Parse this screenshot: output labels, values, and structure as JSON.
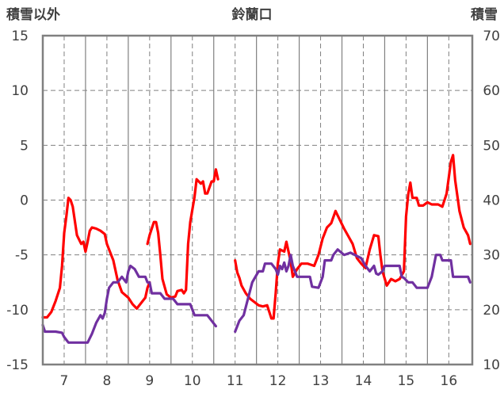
{
  "chart_data": {
    "type": "line",
    "title": "鈴蘭口",
    "ylabel_left": "積雪以外",
    "ylabel_right": "積雪",
    "y_left": {
      "range": [
        -15,
        15
      ],
      "ticks": [
        "15",
        "10",
        "5",
        "0",
        "-5",
        "-10",
        "-15"
      ]
    },
    "y_right": {
      "range": [
        10,
        70
      ],
      "ticks": [
        "70",
        "60",
        "50",
        "40",
        "30",
        "20",
        "10"
      ]
    },
    "x": {
      "range": [
        6.5,
        16.55
      ],
      "ticks": [
        "7",
        "8",
        "9",
        "10",
        "11",
        "12",
        "13",
        "14",
        "15",
        "16"
      ]
    },
    "grid": {
      "horizontal": true,
      "vertical": true,
      "style": "dashed"
    },
    "colors": {
      "red_series": "#ff0000",
      "purple_series": "#7030a0",
      "grid": "#808080",
      "frame": "#808080"
    },
    "series": [
      {
        "axis": "left",
        "color": "#ff0000",
        "segments": [
          [
            [
              6.5,
              -10.7
            ],
            [
              6.6,
              -10.7
            ],
            [
              6.7,
              -10.2
            ],
            [
              6.8,
              -9.2
            ],
            [
              6.9,
              -8
            ],
            [
              6.95,
              -6
            ],
            [
              7.0,
              -3
            ],
            [
              7.05,
              -1.5
            ],
            [
              7.1,
              0.2
            ],
            [
              7.15,
              0
            ],
            [
              7.2,
              -0.6
            ],
            [
              7.3,
              -3.2
            ],
            [
              7.4,
              -4
            ],
            [
              7.45,
              -3.8
            ],
            [
              7.5,
              -4.7
            ],
            [
              7.55,
              -3.8
            ],
            [
              7.6,
              -2.8
            ],
            [
              7.65,
              -2.5
            ],
            [
              7.75,
              -2.6
            ],
            [
              7.85,
              -2.8
            ],
            [
              7.95,
              -3.1
            ],
            [
              8.0,
              -4
            ],
            [
              8.1,
              -5
            ],
            [
              8.15,
              -5.5
            ],
            [
              8.25,
              -7.3
            ],
            [
              8.35,
              -8.4
            ],
            [
              8.5,
              -8.9
            ],
            [
              8.6,
              -9.5
            ],
            [
              8.7,
              -9.9
            ],
            [
              8.8,
              -9.4
            ],
            [
              8.9,
              -8.9
            ],
            [
              8.95,
              -8
            ],
            [
              9.0,
              -7.5
            ]
          ],
          [
            [
              8.95,
              -4
            ],
            [
              9.0,
              -3.2
            ],
            [
              9.1,
              -2
            ],
            [
              9.15,
              -2
            ],
            [
              9.2,
              -3
            ],
            [
              9.25,
              -5
            ],
            [
              9.3,
              -7.2
            ],
            [
              9.4,
              -8.6
            ],
            [
              9.5,
              -8.9
            ],
            [
              9.6,
              -8.8
            ],
            [
              9.65,
              -8.3
            ],
            [
              9.75,
              -8.2
            ],
            [
              9.8,
              -8.5
            ],
            [
              9.85,
              -8.2
            ],
            [
              9.9,
              -4
            ],
            [
              9.95,
              -2
            ],
            [
              10.05,
              0.3
            ],
            [
              10.1,
              1.9
            ],
            [
              10.2,
              1.5
            ],
            [
              10.25,
              1.7
            ],
            [
              10.3,
              0.6
            ],
            [
              10.35,
              0.6
            ],
            [
              10.45,
              1.7
            ],
            [
              10.5,
              1.7
            ],
            [
              10.55,
              2.8
            ],
            [
              10.6,
              1.9
            ]
          ],
          [
            [
              11.0,
              -5.5
            ],
            [
              11.05,
              -6.6
            ],
            [
              11.1,
              -7.1
            ],
            [
              11.15,
              -7.8
            ],
            [
              11.25,
              -8.5
            ],
            [
              11.35,
              -9
            ],
            [
              11.45,
              -9.3
            ],
            [
              11.55,
              -9.6
            ],
            [
              11.65,
              -9.7
            ],
            [
              11.75,
              -9.6
            ],
            [
              11.85,
              -10.8
            ],
            [
              11.9,
              -10.8
            ],
            [
              11.95,
              -8.5
            ],
            [
              12.0,
              -5.8
            ],
            [
              12.05,
              -4.5
            ],
            [
              12.15,
              -4.7
            ],
            [
              12.2,
              -3.8
            ],
            [
              12.3,
              -5.6
            ],
            [
              12.35,
              -7
            ],
            [
              12.45,
              -6.3
            ],
            [
              12.55,
              -5.8
            ],
            [
              12.7,
              -5.8
            ],
            [
              12.85,
              -6
            ],
            [
              12.95,
              -5
            ],
            [
              13.05,
              -3.5
            ],
            [
              13.15,
              -2.5
            ],
            [
              13.25,
              -2.1
            ],
            [
              13.35,
              -1
            ],
            [
              13.45,
              -1.8
            ],
            [
              13.55,
              -2.6
            ],
            [
              13.65,
              -3.3
            ],
            [
              13.75,
              -4
            ],
            [
              13.85,
              -5.3
            ],
            [
              13.95,
              -5.8
            ],
            [
              14.05,
              -6.2
            ],
            [
              14.15,
              -4.5
            ],
            [
              14.25,
              -3.2
            ],
            [
              14.35,
              -3.3
            ],
            [
              14.4,
              -5
            ],
            [
              14.45,
              -6.5
            ],
            [
              14.55,
              -7.8
            ],
            [
              14.65,
              -7.2
            ],
            [
              14.75,
              -7.4
            ],
            [
              14.85,
              -7.2
            ],
            [
              14.95,
              -6.5
            ],
            [
              15.0,
              -1.5
            ],
            [
              15.05,
              0.5
            ],
            [
              15.1,
              1.6
            ],
            [
              15.15,
              0.2
            ],
            [
              15.25,
              0.2
            ],
            [
              15.3,
              -0.5
            ],
            [
              15.4,
              -0.5
            ],
            [
              15.5,
              -0.2
            ],
            [
              15.6,
              -0.4
            ],
            [
              15.75,
              -0.4
            ],
            [
              15.85,
              -0.6
            ],
            [
              15.95,
              0.6
            ],
            [
              16.05,
              3.5
            ],
            [
              16.1,
              4.1
            ],
            [
              16.15,
              1.8
            ],
            [
              16.25,
              -1
            ],
            [
              16.35,
              -2.5
            ],
            [
              16.45,
              -3.2
            ],
            [
              16.5,
              -4
            ]
          ]
        ]
      },
      {
        "axis": "left",
        "color": "#7030a0",
        "segments": [
          [
            [
              6.5,
              -11.4
            ],
            [
              6.55,
              -12
            ],
            [
              6.8,
              -12
            ],
            [
              6.95,
              -12.1
            ],
            [
              7.0,
              -12.5
            ],
            [
              7.1,
              -13
            ],
            [
              7.55,
              -13
            ],
            [
              7.65,
              -12.2
            ],
            [
              7.75,
              -11.2
            ],
            [
              7.85,
              -10.5
            ],
            [
              7.9,
              -10.8
            ],
            [
              7.95,
              -10.3
            ],
            [
              8.0,
              -9
            ],
            [
              8.05,
              -8
            ],
            [
              8.15,
              -7.5
            ],
            [
              8.25,
              -7.5
            ],
            [
              8.35,
              -7
            ],
            [
              8.45,
              -7.5
            ],
            [
              8.5,
              -6.5
            ],
            [
              8.55,
              -6
            ],
            [
              8.65,
              -6.3
            ],
            [
              8.75,
              -7
            ],
            [
              8.9,
              -7
            ],
            [
              8.95,
              -7.5
            ],
            [
              9.0,
              -7.5
            ],
            [
              9.05,
              -8.5
            ],
            [
              9.25,
              -8.5
            ],
            [
              9.35,
              -9
            ],
            [
              9.55,
              -9
            ],
            [
              9.65,
              -9.5
            ],
            [
              9.95,
              -9.5
            ],
            [
              10.05,
              -10.5
            ],
            [
              10.35,
              -10.5
            ],
            [
              10.45,
              -11
            ],
            [
              10.55,
              -11.5
            ]
          ],
          [
            [
              11.0,
              -12
            ],
            [
              11.1,
              -11
            ],
            [
              11.2,
              -10.5
            ],
            [
              11.3,
              -9
            ],
            [
              11.4,
              -7.5
            ],
            [
              11.55,
              -6.5
            ],
            [
              11.65,
              -6.5
            ],
            [
              11.7,
              -5.8
            ],
            [
              11.85,
              -5.8
            ],
            [
              11.95,
              -6.3
            ],
            [
              12.0,
              -6.8
            ],
            [
              12.05,
              -6
            ],
            [
              12.1,
              -6.3
            ],
            [
              12.15,
              -5.7
            ],
            [
              12.2,
              -6.5
            ],
            [
              12.25,
              -6
            ],
            [
              12.3,
              -5
            ],
            [
              12.35,
              -6
            ],
            [
              12.45,
              -7
            ],
            [
              12.75,
              -7
            ],
            [
              12.8,
              -7.9
            ],
            [
              12.95,
              -8
            ],
            [
              13.05,
              -7
            ],
            [
              13.1,
              -5.5
            ],
            [
              13.25,
              -5.5
            ],
            [
              13.3,
              -5
            ],
            [
              13.4,
              -4.5
            ],
            [
              13.55,
              -5
            ],
            [
              13.7,
              -4.8
            ],
            [
              13.8,
              -5
            ],
            [
              13.95,
              -5.3
            ],
            [
              14.05,
              -6
            ],
            [
              14.15,
              -6.5
            ],
            [
              14.25,
              -6
            ],
            [
              14.3,
              -6.7
            ],
            [
              14.35,
              -6.8
            ],
            [
              14.45,
              -6.5
            ],
            [
              14.5,
              -6
            ],
            [
              14.85,
              -6
            ],
            [
              14.9,
              -7
            ],
            [
              14.95,
              -7.1
            ],
            [
              15.05,
              -7.5
            ],
            [
              15.15,
              -7.5
            ],
            [
              15.25,
              -8
            ],
            [
              15.5,
              -8
            ],
            [
              15.6,
              -7
            ],
            [
              15.7,
              -5
            ],
            [
              15.8,
              -5
            ],
            [
              15.85,
              -5.5
            ],
            [
              16.05,
              -5.5
            ],
            [
              16.1,
              -7
            ],
            [
              16.45,
              -7
            ],
            [
              16.5,
              -7.5
            ]
          ]
        ]
      }
    ]
  }
}
